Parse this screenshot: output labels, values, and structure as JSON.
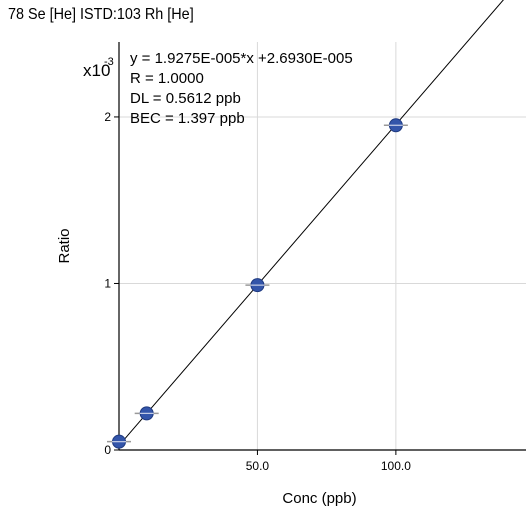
{
  "chart_data": {
    "type": "scatter",
    "title": "78 Se [He] ISTD:103 Rh [He]",
    "xlabel": "Conc (ppb)",
    "ylabel": "Ratio",
    "y_multiplier": "x10",
    "y_multiplier_exp": "-3",
    "xlim": [
      0,
      147
    ],
    "ylim": [
      0,
      2.45
    ],
    "x_ticks": [
      {
        "value": 50,
        "label": "50.0"
      },
      {
        "value": 100,
        "label": "100.0"
      }
    ],
    "y_ticks": [
      {
        "value": 0,
        "label": "0"
      },
      {
        "value": 1,
        "label": "1"
      },
      {
        "value": 2,
        "label": "2"
      }
    ],
    "grid": true,
    "points": [
      {
        "x": 0,
        "y": 0.05
      },
      {
        "x": 10,
        "y": 0.22
      },
      {
        "x": 50,
        "y": 0.99
      },
      {
        "x": 100,
        "y": 1.95
      }
    ],
    "fit": {
      "slope": 0.019275,
      "intercept": 0.02693
    },
    "annotations": [
      "y = 1.9275E-005*x +2.6930E-005",
      "R = 1.0000",
      "DL = 0.5612 ppb",
      "BEC = 1.397 ppb"
    ],
    "colors": {
      "point": "#3355aa",
      "point_edge": "#1f3a80",
      "line": "#000000",
      "grid": "#d9d9d9",
      "errorbar": "#999999"
    }
  }
}
